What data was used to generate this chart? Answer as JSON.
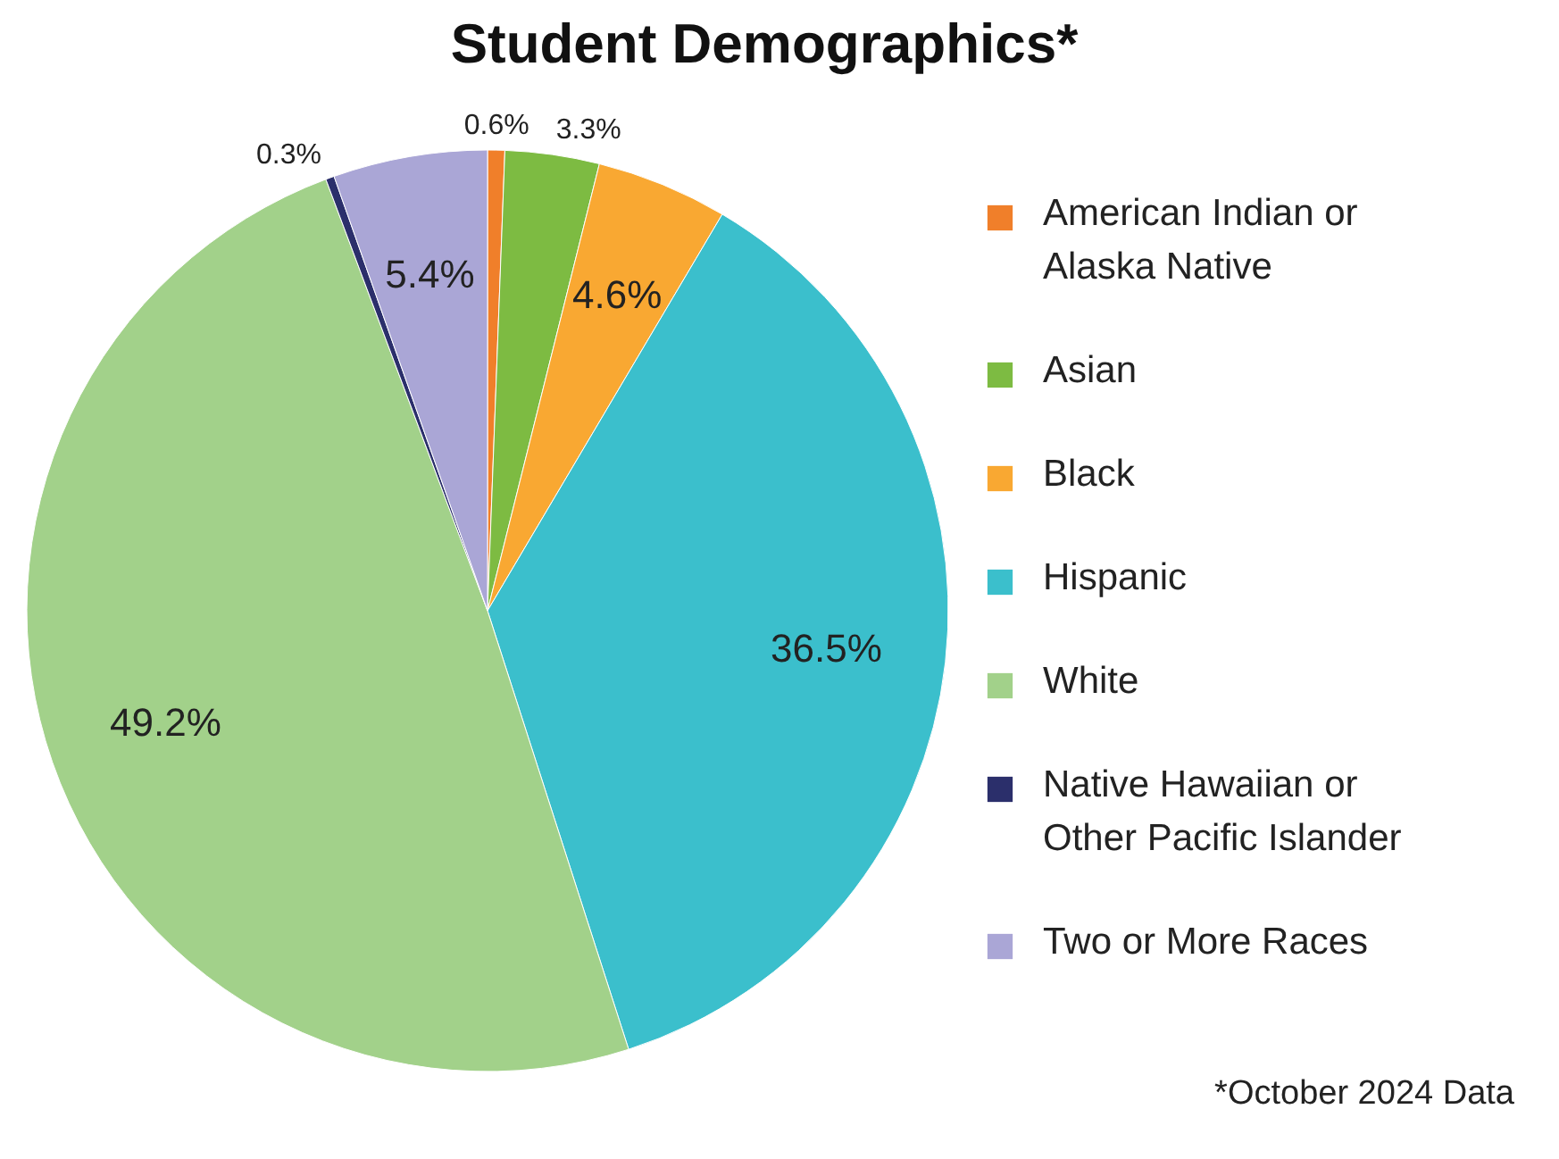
{
  "chart_data": {
    "type": "pie",
    "title": "Student Demographics*",
    "categories": [
      "American Indian or Alaska Native",
      "Asian",
      "Black",
      "Hispanic",
      "White",
      "Native Hawaiian or Other Pacific Islander",
      "Two or More Races"
    ],
    "values": [
      0.6,
      3.3,
      4.6,
      36.5,
      49.2,
      0.3,
      5.4
    ],
    "colors": [
      "#f07f2a",
      "#7dbb42",
      "#f9a832",
      "#3bbfcc",
      "#a2d18a",
      "#2b2f6b",
      "#aaa6d6"
    ],
    "value_labels": [
      "0.6%",
      "3.3%",
      "4.6%",
      "36.5%",
      "49.2%",
      "0.3%",
      "5.4%"
    ],
    "legend": "right",
    "annotations": [
      "*October 2024 Data"
    ]
  }
}
